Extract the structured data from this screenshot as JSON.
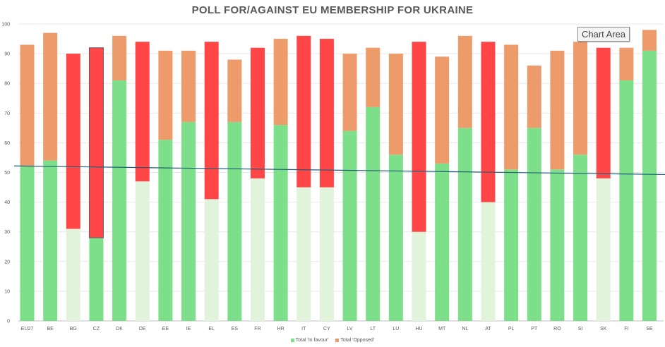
{
  "chart_data": {
    "type": "bar",
    "stacked": true,
    "title": "POLL FOR/AGAINST EU MEMBERSHIP FOR UKRAINE",
    "xlabel": "",
    "ylabel": "",
    "ylim": [
      0,
      100
    ],
    "yticks": [
      0,
      10,
      20,
      30,
      40,
      50,
      60,
      70,
      80,
      90,
      100
    ],
    "grid": true,
    "legend_position": "bottom",
    "categories": [
      "EU27",
      "BE",
      "BG",
      "CZ",
      "DK",
      "DE",
      "EE",
      "IE",
      "EL",
      "ES",
      "FR",
      "HR",
      "IT",
      "CY",
      "LV",
      "LT",
      "LU",
      "HU",
      "MT",
      "NL",
      "AT",
      "PL",
      "PT",
      "RO",
      "SI",
      "SK",
      "FI",
      "SE"
    ],
    "series": [
      {
        "name": "Total 'In favour'",
        "color": "#7ddf8a",
        "values": [
          52,
          54,
          31,
          28,
          81,
          47,
          61,
          67,
          41,
          67,
          48,
          66,
          45,
          45,
          64,
          72,
          56,
          30,
          53,
          65,
          40,
          51,
          65,
          51,
          56,
          48,
          81,
          91
        ]
      },
      {
        "name": "Total 'Opposed'",
        "color": "#ee9b6b",
        "values": [
          41,
          43,
          59,
          64,
          15,
          47,
          30,
          24,
          53,
          21,
          44,
          29,
          51,
          50,
          26,
          20,
          34,
          64,
          36,
          31,
          54,
          42,
          21,
          40,
          38,
          44,
          11,
          7
        ]
      }
    ],
    "minority_favour": [
      "BG",
      "DE",
      "EL",
      "FR",
      "IT",
      "CY",
      "HU",
      "AT",
      "SK",
      "CZ"
    ],
    "minority_favour_color": "#e2f3dc",
    "minority_opposed_color": "#ff4545",
    "light_favour": [
      "BG",
      "DE",
      "EL",
      "FR",
      "IT",
      "CY",
      "HU",
      "AT",
      "SK"
    ],
    "trendline": {
      "start": 52.2,
      "end": 49.3,
      "color": "#1f5f7a"
    },
    "tooltip": "Chart Area"
  }
}
